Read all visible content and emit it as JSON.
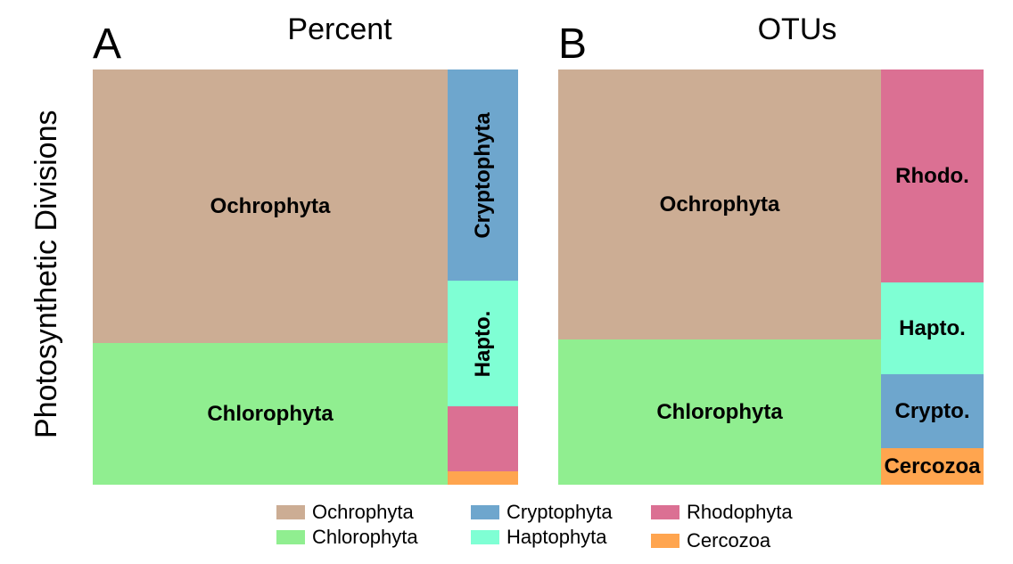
{
  "y_axis_label": "Photosynthetic Divisions",
  "colors": {
    "Ochrophyta": "#ccad94",
    "Chlorophyta": "#90ee90",
    "Cryptophyta": "#6ea6cd",
    "Haptophyta": "#7fffd4",
    "Rhodophyta": "#db7093",
    "Cercozoa": "#ffa54f"
  },
  "legend": {
    "items": [
      {
        "name": "Ochrophyta",
        "color": "#ccad94"
      },
      {
        "name": "Chlorophyta",
        "color": "#90ee90"
      },
      {
        "name": "Cryptophyta",
        "color": "#6ea6cd"
      },
      {
        "name": "Haptophyta",
        "color": "#7fffd4"
      },
      {
        "name": "Rhodophyta",
        "color": "#db7093"
      },
      {
        "name": "Cercozoa",
        "color": "#ffa54f"
      }
    ]
  },
  "chart_data": [
    {
      "type": "treemap",
      "panel_letter": "A",
      "title": "Percent",
      "values": [
        {
          "name": "Ochrophyta",
          "label": "Ochrophyta",
          "value": 55.0
        },
        {
          "name": "Chlorophyta",
          "label": "Chlorophyta",
          "value": 28.5
        },
        {
          "name": "Cryptophyta",
          "label": "Cryptophyta",
          "value": 8.4
        },
        {
          "name": "Haptophyta",
          "label": "Hapto.",
          "value": 5.0
        },
        {
          "name": "Rhodophyta",
          "label": "",
          "value": 2.6
        },
        {
          "name": "Cercozoa",
          "label": "",
          "value": 0.5
        }
      ]
    },
    {
      "type": "treemap",
      "panel_letter": "B",
      "title": "OTUs",
      "values": [
        {
          "name": "Ochrophyta",
          "label": "Ochrophyta",
          "value": 48.9
        },
        {
          "name": "Chlorophyta",
          "label": "Chlorophyta",
          "value": 26.3
        },
        {
          "name": "Rhodophyta",
          "label": "Rhodo.",
          "value": 12.3
        },
        {
          "name": "Haptophyta",
          "label": "Hapto.",
          "value": 5.3
        },
        {
          "name": "Cryptophyta",
          "label": "Crypto.",
          "value": 4.3
        },
        {
          "name": "Cercozoa",
          "label": "Cercozoa",
          "value": 2.1
        }
      ]
    }
  ]
}
